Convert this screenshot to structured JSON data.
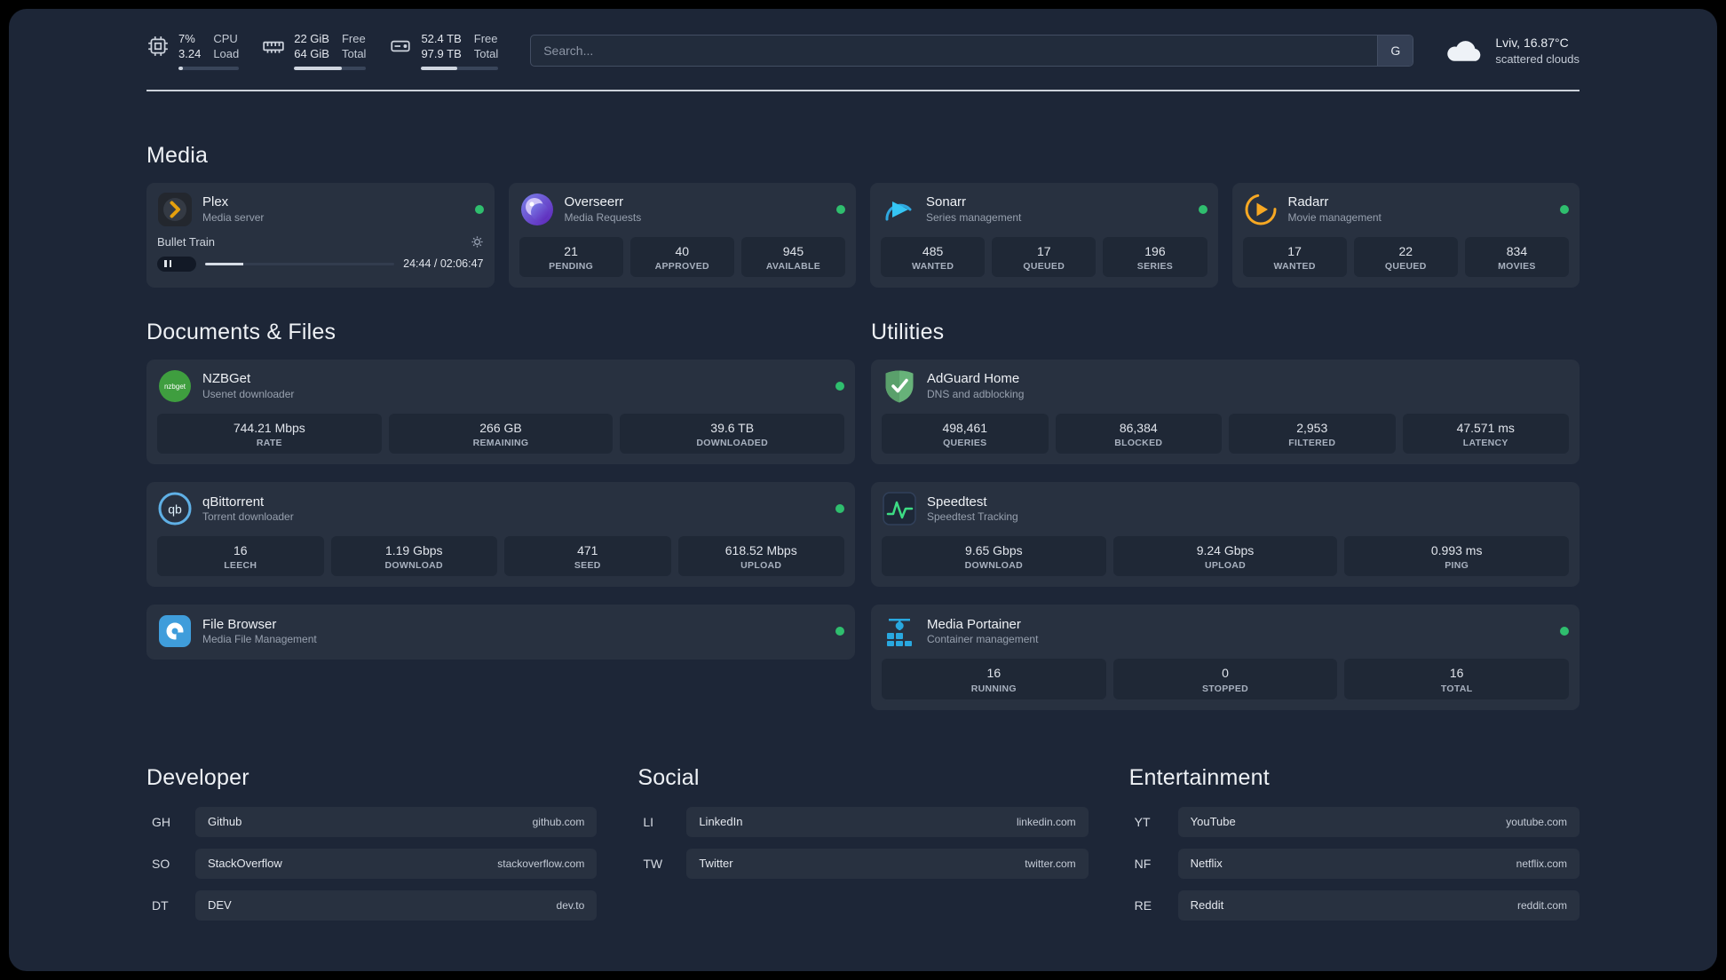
{
  "topbar": {
    "cpu": {
      "percent": "7%",
      "load": "3.24",
      "col_top": "CPU",
      "col_bottom": "Load",
      "bar_percent": 7
    },
    "ram": {
      "free": "22 GiB",
      "total": "64 GiB",
      "col_top": "Free",
      "col_bottom": "Total",
      "bar_percent": 66
    },
    "disk": {
      "free": "52.4 TB",
      "total": "97.9 TB",
      "col_top": "Free",
      "col_bottom": "Total",
      "bar_percent": 47
    },
    "search": {
      "placeholder": "Search...",
      "provider_label": "G"
    },
    "weather": {
      "location": "Lviv, 16.87°C",
      "condition": "scattered clouds"
    }
  },
  "groups": {
    "media": {
      "title": "Media",
      "plex": {
        "name": "Plex",
        "desc": "Media server",
        "player": {
          "track": "Bullet Train",
          "time": "24:44 / 02:06:47",
          "progress_percent": 20
        }
      },
      "overseerr": {
        "name": "Overseerr",
        "desc": "Media Requests",
        "stats": [
          {
            "value": "21",
            "label": "PENDING"
          },
          {
            "value": "40",
            "label": "APPROVED"
          },
          {
            "value": "945",
            "label": "AVAILABLE"
          }
        ]
      },
      "sonarr": {
        "name": "Sonarr",
        "desc": "Series management",
        "stats": [
          {
            "value": "485",
            "label": "WANTED"
          },
          {
            "value": "17",
            "label": "QUEUED"
          },
          {
            "value": "196",
            "label": "SERIES"
          }
        ]
      },
      "radarr": {
        "name": "Radarr",
        "desc": "Movie management",
        "stats": [
          {
            "value": "17",
            "label": "WANTED"
          },
          {
            "value": "22",
            "label": "QUEUED"
          },
          {
            "value": "834",
            "label": "MOVIES"
          }
        ]
      }
    },
    "documents": {
      "title": "Documents & Files",
      "nzbget": {
        "name": "NZBGet",
        "desc": "Usenet downloader",
        "stats": [
          {
            "value": "744.21 Mbps",
            "label": "RATE"
          },
          {
            "value": "266 GB",
            "label": "REMAINING"
          },
          {
            "value": "39.6 TB",
            "label": "DOWNLOADED"
          }
        ]
      },
      "qbittorrent": {
        "name": "qBittorrent",
        "desc": "Torrent downloader",
        "stats": [
          {
            "value": "16",
            "label": "LEECH"
          },
          {
            "value": "1.19 Gbps",
            "label": "DOWNLOAD"
          },
          {
            "value": "471",
            "label": "SEED"
          },
          {
            "value": "618.52 Mbps",
            "label": "UPLOAD"
          }
        ]
      },
      "filebrowser": {
        "name": "File Browser",
        "desc": "Media File Management"
      }
    },
    "utilities": {
      "title": "Utilities",
      "adguard": {
        "name": "AdGuard Home",
        "desc": "DNS and adblocking",
        "stats": [
          {
            "value": "498,461",
            "label": "QUERIES"
          },
          {
            "value": "86,384",
            "label": "BLOCKED"
          },
          {
            "value": "2,953",
            "label": "FILTERED"
          },
          {
            "value": "47.571 ms",
            "label": "LATENCY"
          }
        ]
      },
      "speedtest": {
        "name": "Speedtest",
        "desc": "Speedtest Tracking",
        "stats": [
          {
            "value": "9.65 Gbps",
            "label": "DOWNLOAD"
          },
          {
            "value": "9.24 Gbps",
            "label": "UPLOAD"
          },
          {
            "value": "0.993 ms",
            "label": "PING"
          }
        ]
      },
      "portainer": {
        "name": "Media Portainer",
        "desc": "Container management",
        "stats": [
          {
            "value": "16",
            "label": "RUNNING"
          },
          {
            "value": "0",
            "label": "STOPPED"
          },
          {
            "value": "16",
            "label": "TOTAL"
          }
        ]
      }
    }
  },
  "bookmarks": {
    "developer": {
      "title": "Developer",
      "items": [
        {
          "abbr": "GH",
          "name": "Github",
          "url": "github.com"
        },
        {
          "abbr": "SO",
          "name": "StackOverflow",
          "url": "stackoverflow.com"
        },
        {
          "abbr": "DT",
          "name": "DEV",
          "url": "dev.to"
        }
      ]
    },
    "social": {
      "title": "Social",
      "items": [
        {
          "abbr": "LI",
          "name": "LinkedIn",
          "url": "linkedin.com"
        },
        {
          "abbr": "TW",
          "name": "Twitter",
          "url": "twitter.com"
        }
      ]
    },
    "entertainment": {
      "title": "Entertainment",
      "items": [
        {
          "abbr": "YT",
          "name": "YouTube",
          "url": "youtube.com"
        },
        {
          "abbr": "NF",
          "name": "Netflix",
          "url": "netflix.com"
        },
        {
          "abbr": "RE",
          "name": "Reddit",
          "url": "reddit.com"
        }
      ]
    }
  },
  "status_colors": {
    "online": "#2fbe6e"
  },
  "icons": {
    "cpu-icon": "chip",
    "memory-icon": "ram-stick",
    "disk-icon": "drive",
    "search-provider-icon": "G",
    "weather-icon": "cloud",
    "plex-icon": "amber-chevron-circle",
    "overseerr-icon": "purple-swirl-circle",
    "sonarr-icon": "blue-play",
    "radarr-icon": "amber-play-ring",
    "nzbget-icon": "green-circle-nzbget",
    "qbittorrent-icon": "blue-circle-qb",
    "filebrowser-icon": "blue-square-circle",
    "adguard-icon": "green-shield-check",
    "speedtest-icon": "green-waveform",
    "portainer-icon": "blue-crane",
    "gear-icon": "settings-gear",
    "pause-icon": "pause-bars",
    "status-dot": "green-dot"
  }
}
